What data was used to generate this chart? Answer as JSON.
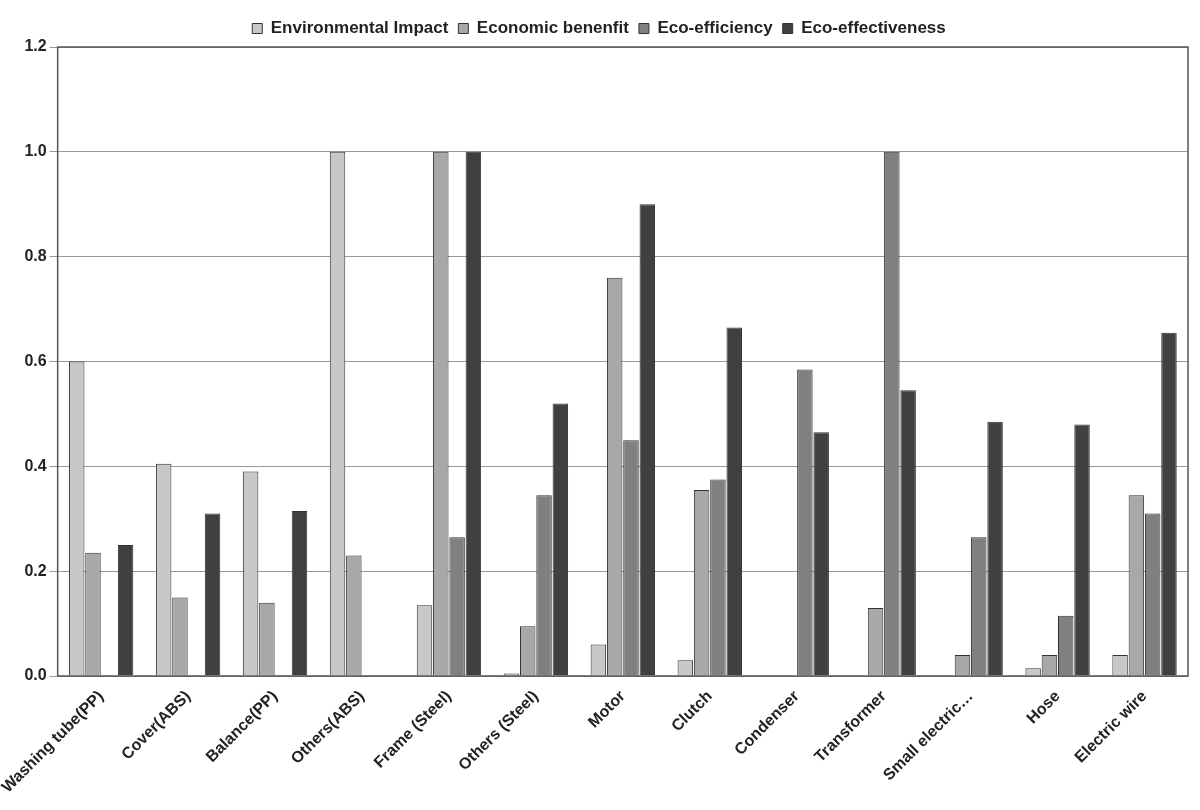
{
  "chart_data": {
    "type": "bar",
    "categories": [
      "Washing tube(PP)",
      "Cover(ABS)",
      "Balance(PP)",
      "Others(ABS)",
      "Frame (Steel)",
      "Others (Steel)",
      "Motor",
      "Clutch",
      "Condenser",
      "Transformer",
      "Small electric…",
      "Hose",
      "Electric wire"
    ],
    "series": [
      {
        "name": "Environmental Impact",
        "color": "#c8c8c8",
        "values": [
          0.6,
          0.405,
          0.39,
          1.0,
          0.135,
          0.005,
          0.06,
          0.03,
          0,
          0,
          0,
          0.015,
          0.04
        ]
      },
      {
        "name": "Economic benenfit",
        "color": "#a8a8a8",
        "values": [
          0.235,
          0.15,
          0.14,
          0.23,
          1.0,
          0.095,
          0.76,
          0.355,
          0,
          0.13,
          0.04,
          0.04,
          0.345
        ]
      },
      {
        "name": "Eco-efficiency",
        "color": "#808080",
        "values": [
          0,
          0,
          0,
          0,
          0.265,
          0.345,
          0.45,
          0.375,
          0.585,
          1.0,
          0.265,
          0.115,
          0.31
        ]
      },
      {
        "name": "Eco-effectiveness",
        "color": "#404040",
        "values": [
          0.25,
          0.31,
          0.315,
          0,
          1.0,
          0.52,
          0.9,
          0.665,
          0.465,
          0.545,
          0.485,
          0.48,
          0.655
        ]
      }
    ],
    "ylim": [
      0,
      1.2
    ],
    "yticks": [
      {
        "value": 0,
        "label": "0.0"
      },
      {
        "value": 0.2,
        "label": "0.2"
      },
      {
        "value": 0.4,
        "label": "0.4"
      },
      {
        "value": 0.6,
        "label": "0.6"
      },
      {
        "value": 0.8,
        "label": "0.8"
      },
      {
        "value": 1,
        "label": "1.0"
      },
      {
        "value": 1.2,
        "label": "1.2"
      }
    ],
    "grid": "y",
    "legend": "top"
  }
}
